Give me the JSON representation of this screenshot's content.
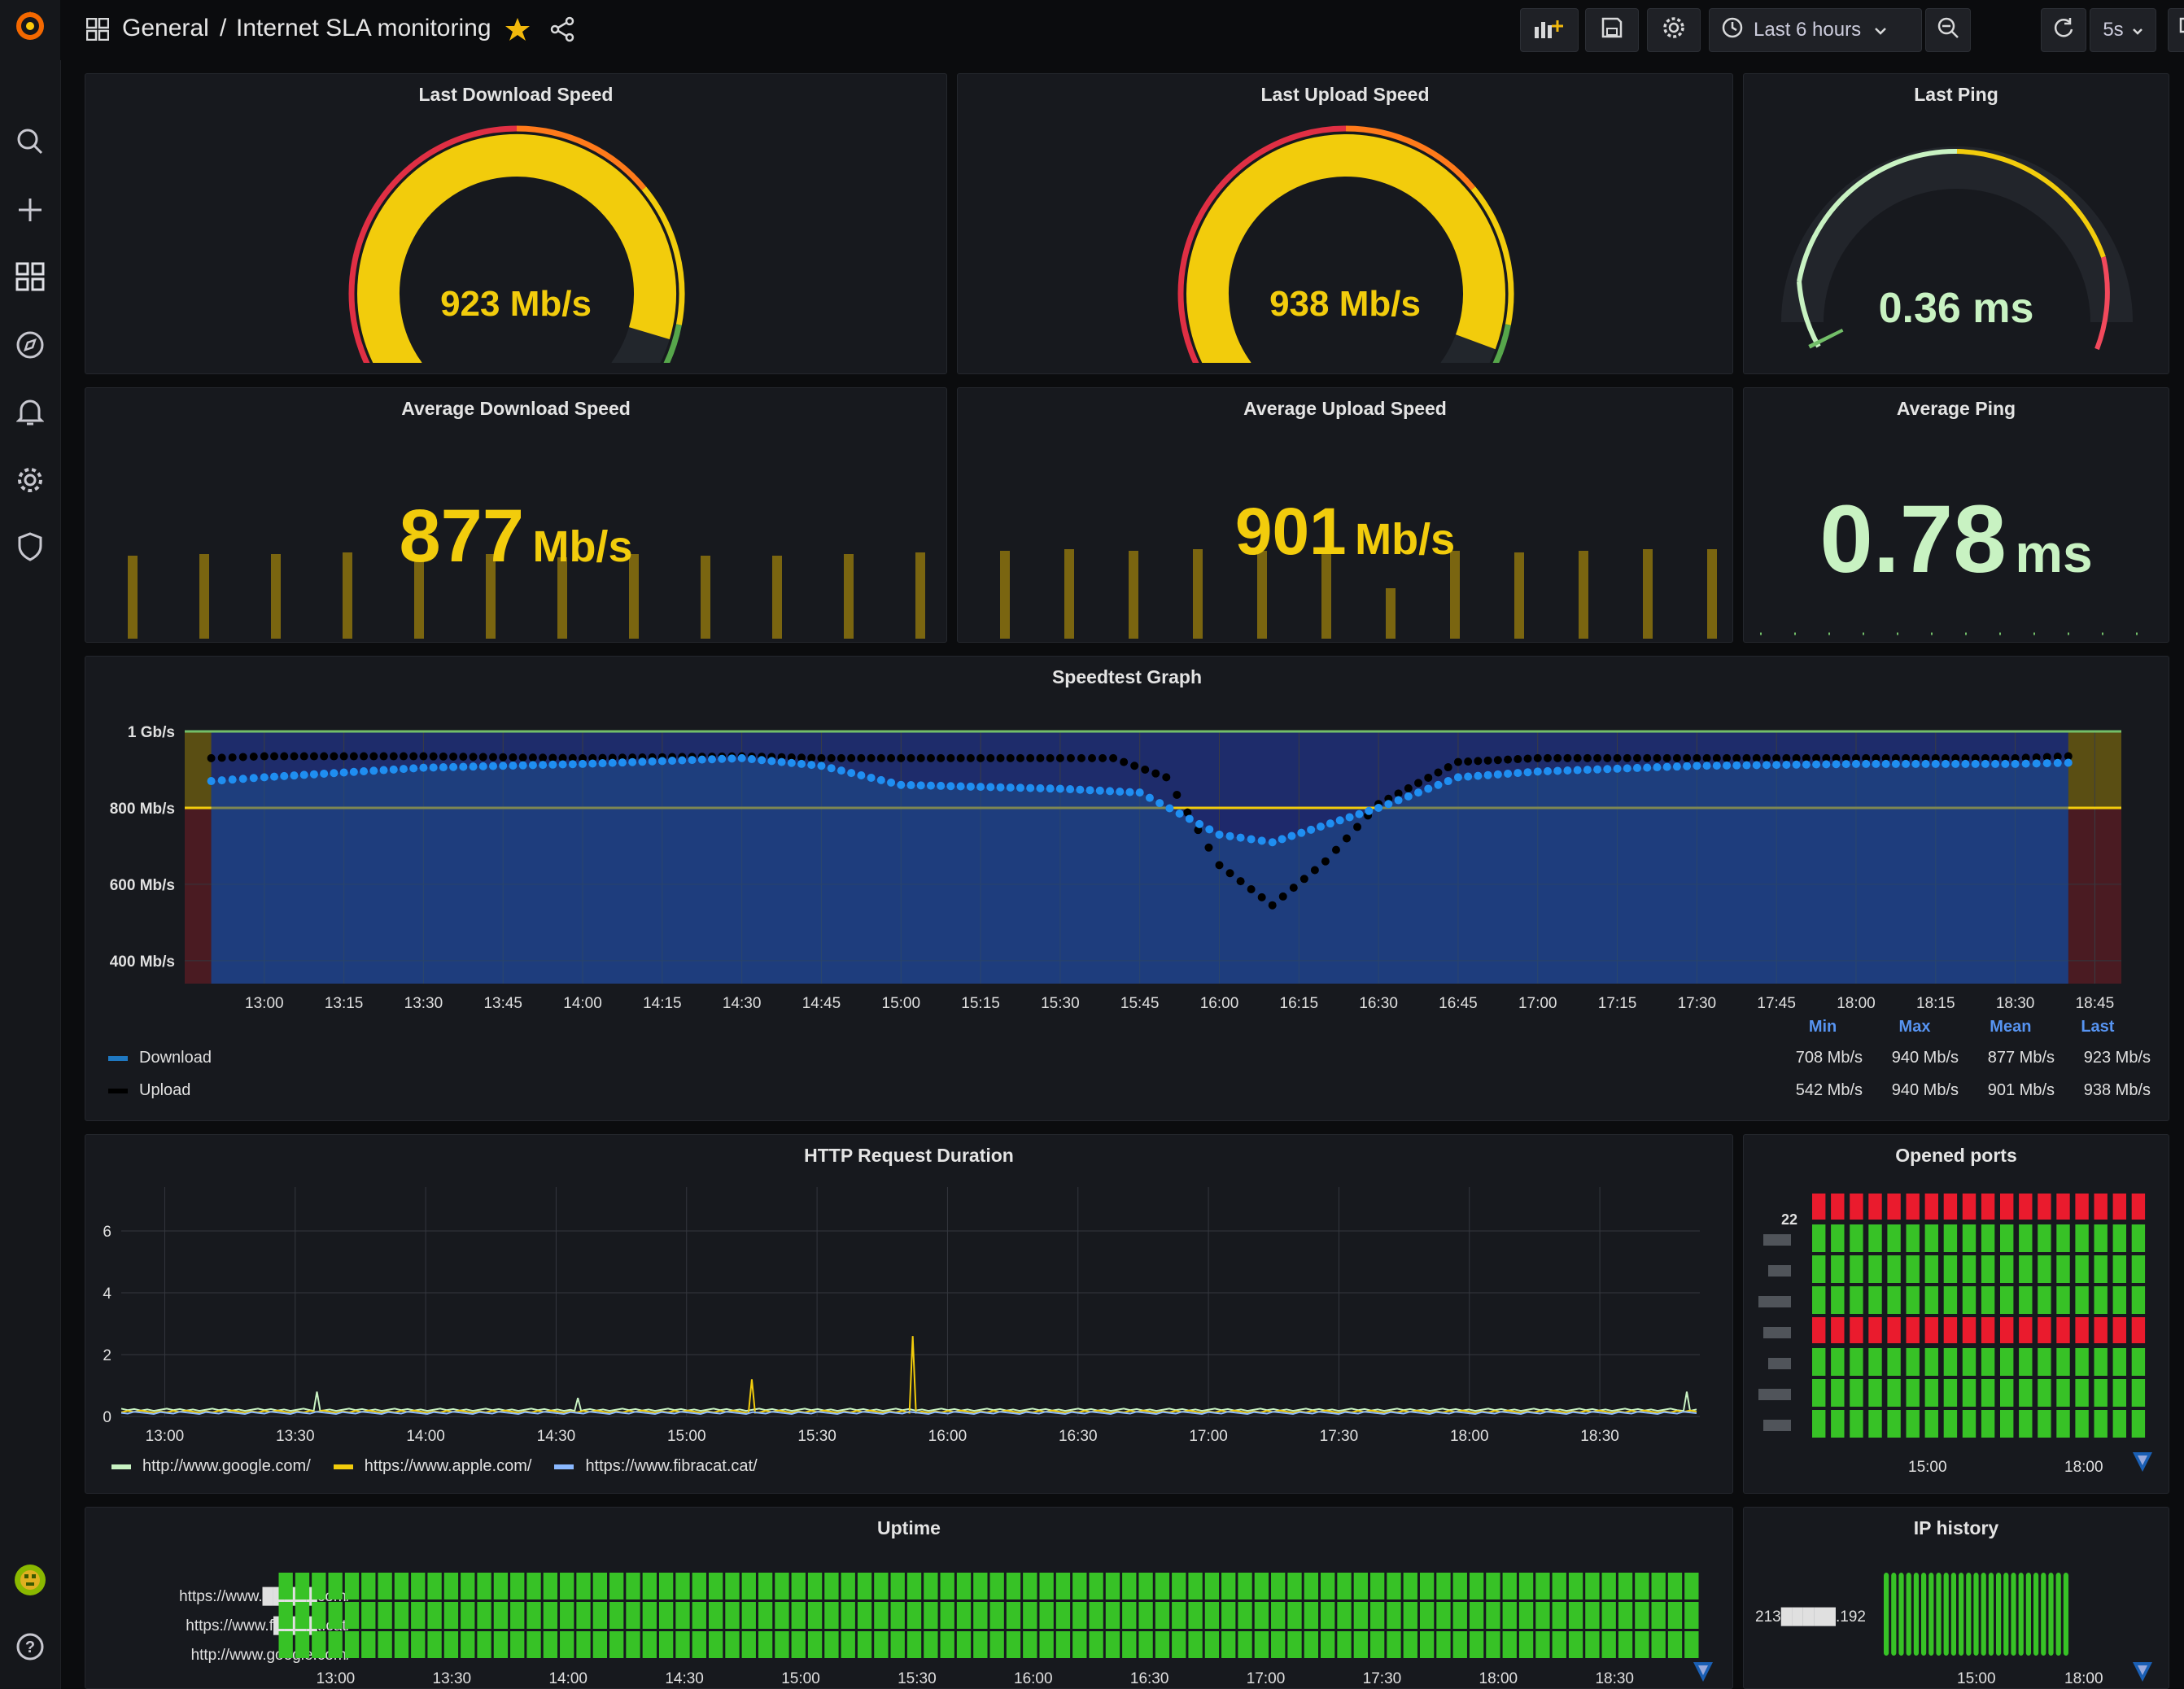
{
  "topbar": {
    "folder": "General",
    "separator": "/",
    "dashboard_title": "Internet SLA monitoring",
    "time_range": "Last 6 hours",
    "refresh_interval": "5s"
  },
  "sidebar_icons": [
    "grafana-logo-icon",
    "search-icon",
    "plus-icon",
    "dashboards-icon",
    "explore-icon",
    "alerting-icon",
    "configuration-icon",
    "shield-icon",
    "user-avatar-icon",
    "help-icon"
  ],
  "colors": {
    "yellow": "#f2cc0c",
    "green": "#73bf69",
    "lightgreen": "#c8f2c2",
    "red": "#f2495c",
    "blue": "#1f78c1",
    "bg": "#17191e"
  },
  "panels": {
    "last_download": {
      "title": "Last Download Speed",
      "value": "923 Mb/s",
      "gauge_fraction": 0.923
    },
    "last_upload": {
      "title": "Last Upload Speed",
      "value": "938 Mb/s",
      "gauge_fraction": 0.938
    },
    "last_ping": {
      "title": "Last Ping",
      "value": "0.36 ms"
    },
    "avg_download": {
      "title": "Average Download Speed",
      "value": "877",
      "unit": "Mb/s"
    },
    "avg_upload": {
      "title": "Average Upload Speed",
      "value": "901",
      "unit": "Mb/s"
    },
    "avg_ping": {
      "title": "Average Ping",
      "value": "0.78",
      "unit": "ms"
    },
    "speedtest": {
      "title": "Speedtest Graph",
      "stats_headers": [
        "Min",
        "Max",
        "Mean",
        "Last"
      ],
      "legend": [
        {
          "name": "Download",
          "min": "708 Mb/s",
          "max": "940 Mb/s",
          "mean": "877 Mb/s",
          "last": "923 Mb/s"
        },
        {
          "name": "Upload",
          "min": "542 Mb/s",
          "max": "940 Mb/s",
          "mean": "901 Mb/s",
          "last": "938 Mb/s"
        }
      ]
    },
    "http": {
      "title": "HTTP Request Duration",
      "legend": [
        "http://www.google.com/",
        "https://www.apple.com/",
        "https://www.fibracat.cat/"
      ]
    },
    "ports": {
      "title": "Opened ports",
      "first_label": "22",
      "x_ticks": [
        "15:00",
        "18:00"
      ]
    },
    "uptime": {
      "title": "Uptime",
      "rows": [
        "https://www.█████com/",
        "https://www.f████t.cat/",
        "http://www.google.com/"
      ],
      "x_ticks": [
        "13:00",
        "13:30",
        "14:00",
        "14:30",
        "15:00",
        "15:30",
        "16:00",
        "16:30",
        "17:00",
        "17:30",
        "18:00",
        "18:30"
      ]
    },
    "ip_history": {
      "title": "IP history",
      "ip_label": "213█████.192",
      "x_ticks": [
        "15:00",
        "18:00"
      ]
    }
  },
  "chart_data": [
    {
      "type": "line",
      "title": "Speedtest Graph",
      "x": [
        "13:00",
        "13:15",
        "13:30",
        "13:45",
        "14:00",
        "14:15",
        "14:30",
        "14:45",
        "15:00",
        "15:15",
        "15:30",
        "15:45",
        "16:00",
        "16:15",
        "16:30",
        "16:45",
        "17:00",
        "17:15",
        "17:30",
        "17:45",
        "18:00",
        "18:15",
        "18:30",
        "18:45"
      ],
      "y_ticks": [
        "1 Gb/s",
        "800 Mb/s",
        "600 Mb/s",
        "400 Mb/s"
      ],
      "ylim": [
        340,
        1000
      ],
      "thresholds": [
        800
      ],
      "series": [
        {
          "name": "Download",
          "x": [
            "12:50",
            "13:00",
            "13:30",
            "14:00",
            "14:30",
            "14:45",
            "15:00",
            "15:30",
            "15:45",
            "16:00",
            "16:10",
            "16:30",
            "16:45",
            "17:00",
            "17:30",
            "18:00",
            "18:30",
            "18:40"
          ],
          "values": [
            870,
            880,
            905,
            915,
            930,
            910,
            860,
            850,
            840,
            730,
            710,
            800,
            880,
            895,
            910,
            915,
            915,
            918
          ]
        },
        {
          "name": "Upload",
          "x": [
            "12:50",
            "13:00",
            "13:30",
            "14:00",
            "14:30",
            "14:45",
            "15:00",
            "15:30",
            "15:40",
            "15:50",
            "16:00",
            "16:10",
            "16:20",
            "16:30",
            "16:45",
            "17:00",
            "17:30",
            "18:00",
            "18:30",
            "18:40"
          ],
          "values": [
            930,
            935,
            935,
            930,
            935,
            930,
            930,
            930,
            930,
            880,
            650,
            545,
            660,
            810,
            920,
            930,
            930,
            930,
            930,
            935
          ]
        }
      ]
    },
    {
      "type": "line",
      "title": "HTTP Request Duration",
      "x_ticks": [
        "13:00",
        "13:30",
        "14:00",
        "14:30",
        "15:00",
        "15:30",
        "16:00",
        "16:30",
        "17:00",
        "17:30",
        "18:00",
        "18:30"
      ],
      "y_ticks": [
        "0",
        "2",
        "4",
        "6"
      ],
      "ylim": [
        0,
        7
      ],
      "series": [
        {
          "name": "http://www.google.com/",
          "spikes": [
            [
              "13:35",
              0.8
            ],
            [
              "14:35",
              0.6
            ],
            [
              "18:50",
              0.8
            ]
          ]
        },
        {
          "name": "https://www.apple.com/",
          "spikes": [
            [
              "15:15",
              1.2
            ],
            [
              "15:52",
              2.6
            ]
          ]
        },
        {
          "name": "https://www.fibracat.cat/",
          "spikes": []
        }
      ]
    }
  ]
}
